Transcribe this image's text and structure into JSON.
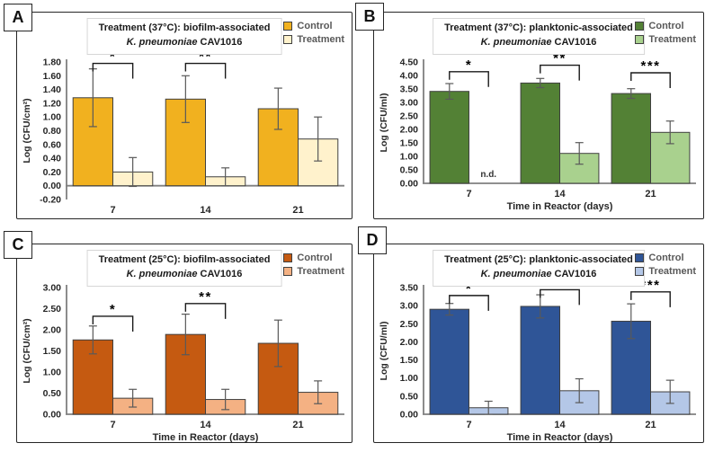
{
  "chart_data": [
    {
      "panel": "A",
      "type": "bar",
      "title_line1": "Treatment (37°C): biofilm-associated",
      "title_species": "K. pneumoniae",
      "title_strain": " CAV1016",
      "ylabel": "Log (CFU/cm²)",
      "xlabel": "Time in Reactor (days)",
      "categories": [
        "7",
        "14",
        "21"
      ],
      "ylim": [
        -0.2,
        1.8
      ],
      "ytick_step": 0.2,
      "grid": false,
      "legend_position": "top-right",
      "series": [
        {
          "name": "Control",
          "color": "#F1B11F",
          "values": [
            1.28,
            1.26,
            1.12
          ],
          "errors": [
            0.42,
            0.34,
            0.3
          ]
        },
        {
          "name": "Treatment",
          "color": "#FFF2CC",
          "values": [
            0.2,
            0.13,
            0.68
          ],
          "errors": [
            0.21,
            0.13,
            0.32
          ]
        }
      ],
      "significance": [
        {
          "category_index": 0,
          "label": "*",
          "bracket_y": 1.78
        },
        {
          "category_index": 1,
          "label": "**",
          "bracket_y": 1.78
        }
      ],
      "annotations": []
    },
    {
      "panel": "B",
      "type": "bar",
      "title_line1": "Treatment (37°C): planktonic-associated",
      "title_species": "K. pneumoniae",
      "title_strain": " CAV1016",
      "ylabel": "Log (CFU/ml)",
      "xlabel": "Time in Reactor (days)",
      "categories": [
        "7",
        "14",
        "21"
      ],
      "ylim": [
        0.0,
        4.5
      ],
      "ytick_step": 0.5,
      "grid": false,
      "legend_position": "top-right",
      "series": [
        {
          "name": "Control",
          "color": "#538135",
          "values": [
            3.41,
            3.72,
            3.33
          ],
          "errors": [
            0.29,
            0.17,
            0.18
          ]
        },
        {
          "name": "Treatment",
          "color": "#A9D18E",
          "values": [
            null,
            1.11,
            1.89
          ],
          "errors": [
            null,
            0.4,
            0.42
          ]
        }
      ],
      "significance": [
        {
          "category_index": 0,
          "label": "*",
          "bracket_y": 4.14
        },
        {
          "category_index": 1,
          "label": "**",
          "bracket_y": 4.38
        },
        {
          "category_index": 2,
          "label": "***",
          "bracket_y": 4.1
        }
      ],
      "annotations": [
        {
          "category_index": 0,
          "series_index": 1,
          "text": "n.d."
        }
      ]
    },
    {
      "panel": "C",
      "type": "bar",
      "title_line1": "Treatment (25°C): biofilm-associated",
      "title_species": "K. pneumoniae",
      "title_strain": " CAV1016",
      "ylabel": "Log (CFU/cm²)",
      "xlabel": "Time in Reactor (days)",
      "categories": [
        "7",
        "14",
        "21"
      ],
      "ylim": [
        0.0,
        3.0
      ],
      "ytick_step": 0.5,
      "grid": false,
      "legend_position": "top-right",
      "series": [
        {
          "name": "Control",
          "color": "#C55A11",
          "values": [
            1.76,
            1.89,
            1.68
          ],
          "errors": [
            0.33,
            0.48,
            0.55
          ]
        },
        {
          "name": "Treatment",
          "color": "#F4B183",
          "values": [
            0.38,
            0.35,
            0.52
          ],
          "errors": [
            0.21,
            0.24,
            0.27
          ]
        }
      ],
      "significance": [
        {
          "category_index": 0,
          "label": "*",
          "bracket_y": 2.32
        },
        {
          "category_index": 1,
          "label": "**",
          "bracket_y": 2.62
        }
      ],
      "annotations": []
    },
    {
      "panel": "D",
      "type": "bar",
      "title_line1": "Treatment (25°C): planktonic-associated",
      "title_species": "K. pneumoniae",
      "title_strain": " CAV1016",
      "ylabel": "Log (CFU/ml)",
      "xlabel": "Time in Reactor (days)",
      "categories": [
        "7",
        "14",
        "21"
      ],
      "ylim": [
        0.0,
        3.5
      ],
      "ytick_step": 0.5,
      "grid": false,
      "legend_position": "top-right",
      "series": [
        {
          "name": "Control",
          "color": "#2F5597",
          "values": [
            2.9,
            2.98,
            2.57
          ],
          "errors": [
            0.16,
            0.32,
            0.48
          ]
        },
        {
          "name": "Treatment",
          "color": "#B4C7E7",
          "values": [
            0.18,
            0.65,
            0.62
          ],
          "errors": [
            0.18,
            0.33,
            0.32
          ]
        }
      ],
      "significance": [
        {
          "category_index": 0,
          "label": "*",
          "bracket_y": 3.28
        },
        {
          "category_index": 1,
          "label": "**",
          "bracket_y": 3.44
        },
        {
          "category_index": 2,
          "label": "***",
          "bracket_y": 3.38
        }
      ],
      "annotations": []
    }
  ]
}
